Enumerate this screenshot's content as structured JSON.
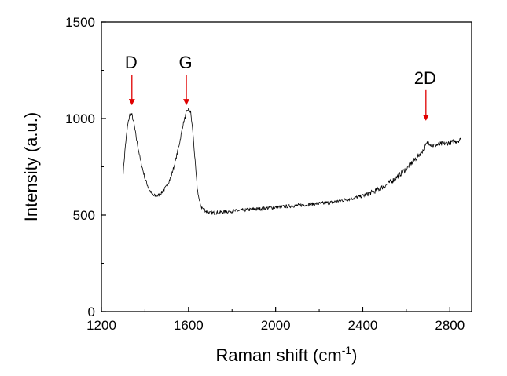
{
  "chart_data": {
    "type": "line",
    "title": "",
    "xlabel": "Raman shift (cm",
    "xlabel_superscript": "-1",
    "xlabel_suffix": ")",
    "ylabel": "Intensity (a.u.)",
    "xlim": [
      1200,
      2900
    ],
    "ylim": [
      0,
      1500
    ],
    "xticks": [
      1200,
      1600,
      2000,
      2400,
      2800
    ],
    "yticks": [
      0,
      500,
      1000,
      1500
    ],
    "grid": false,
    "legend": "none",
    "series": [
      {
        "color": "#000000",
        "x": [
          1300,
          1310,
          1320,
          1330,
          1340,
          1350,
          1360,
          1380,
          1400,
          1420,
          1440,
          1460,
          1480,
          1500,
          1520,
          1540,
          1560,
          1575,
          1590,
          1600,
          1610,
          1620,
          1630,
          1640,
          1650,
          1660,
          1680,
          1700,
          1750,
          1800,
          1850,
          1900,
          1950,
          2000,
          2050,
          2100,
          2150,
          2200,
          2250,
          2300,
          2350,
          2400,
          2450,
          2500,
          2550,
          2600,
          2650,
          2680,
          2700,
          2720,
          2750,
          2800,
          2850
        ],
        "y": [
          720,
          860,
          960,
          1020,
          1020,
          970,
          900,
          780,
          690,
          630,
          600,
          600,
          620,
          650,
          700,
          780,
          880,
          970,
          1030,
          1050,
          1030,
          930,
          780,
          640,
          570,
          540,
          520,
          510,
          515,
          520,
          525,
          530,
          535,
          540,
          545,
          550,
          555,
          560,
          565,
          575,
          585,
          600,
          620,
          650,
          690,
          740,
          800,
          840,
          880,
          860,
          865,
          875,
          890
        ]
      }
    ],
    "annotations": [
      {
        "label": "D",
        "x": 1340,
        "y": 1040,
        "color": "#e00000"
      },
      {
        "label": "G",
        "x": 1590,
        "y": 1040,
        "color": "#e00000"
      },
      {
        "label": "2D",
        "x": 2690,
        "y": 960,
        "color": "#e00000"
      }
    ]
  }
}
